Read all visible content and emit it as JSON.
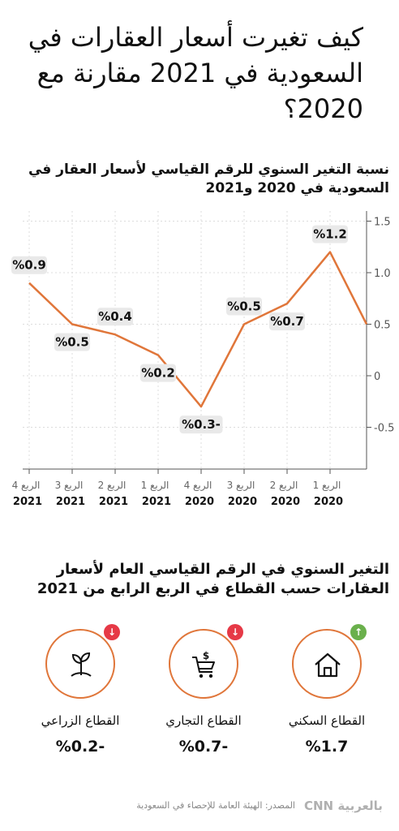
{
  "header": {
    "title": "كيف تغيرت أسعار العقارات في السعودية في 2021 مقارنة مع 2020؟"
  },
  "chart_data": {
    "type": "line",
    "title": "نسبة التغير السنوي للرقم القياسي لأسعار العقار في السعودية في 2020 و2021",
    "categories": [
      [
        "الربع 4",
        "2021"
      ],
      [
        "الربع 3",
        "2021"
      ],
      [
        "الربع 2",
        "2021"
      ],
      [
        "الربع 1",
        "2021"
      ],
      [
        "الربع 4",
        "2020"
      ],
      [
        "الربع 3",
        "2020"
      ],
      [
        "الربع 2",
        "2020"
      ],
      [
        "الربع 1",
        "2020"
      ]
    ],
    "series": [
      {
        "values": [
          0.9,
          0.5,
          0.4,
          0.2,
          -0.3,
          0.5,
          0.7,
          1.2
        ]
      }
    ],
    "end_value": 0.5,
    "data_labels": [
      "%0.9",
      "%0.5",
      "%0.4",
      "%0.2",
      "%0.3-",
      "%0.5",
      "%0.7",
      "%1.2"
    ],
    "label_side": [
      "above",
      "below",
      "above",
      "below",
      "below",
      "above",
      "below",
      "above"
    ],
    "y_ticks": [
      1.5,
      1.0,
      0.5,
      0,
      -0.5
    ],
    "y_tick_labels": [
      "1.5",
      "1.0",
      "0.5",
      "0",
      "-0.5"
    ],
    "ylim": [
      -0.9,
      1.6
    ],
    "grid": true,
    "color": "#e0763a"
  },
  "sectors": {
    "title": "التغير السنوي في الرقم القياسي العام لأسعار العقارات حسب القطاع في الربع الرابع من 2021",
    "items": [
      {
        "name": "القطاع الزراعي",
        "value": "%0.2-",
        "icon": "plant-icon",
        "direction": "down",
        "arrow": "↓",
        "badge_color": "#e63946"
      },
      {
        "name": "القطاع التجاري",
        "value": "%0.7-",
        "icon": "shopping-cart-icon",
        "direction": "down",
        "arrow": "↓",
        "badge_color": "#e63946"
      },
      {
        "name": "القطاع السكني",
        "value": "%1.7",
        "icon": "house-icon",
        "direction": "up",
        "arrow": "↑",
        "badge_color": "#6ab04c"
      }
    ]
  },
  "footer": {
    "source": "المصدر: الهيئة العامة للإحصاء في السعودية",
    "logo_text": "CNN بالعربية"
  }
}
